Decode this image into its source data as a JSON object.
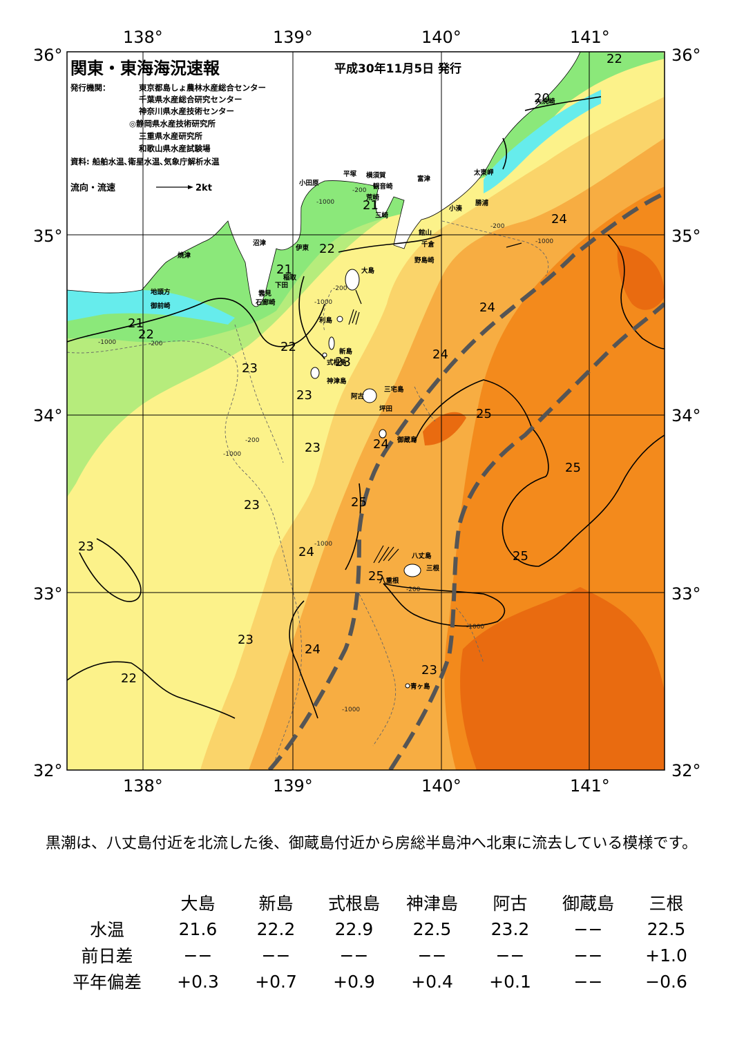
{
  "header": {
    "title": "関東・東海海況速報",
    "issue_date": "平成30年11月5日 発行",
    "issuer_label": "発行機関：",
    "issuers": [
      "東京都島しょ農林水産総合センター",
      "千葉県水産総合研究センター",
      "神奈川県水産技術センター",
      "◎静岡県水産技術研究所",
      "三重県水産研究所",
      "和歌山県水産試験場"
    ],
    "source": "資料: 船舶水温､衛星水温､気象庁解析水温",
    "legend_label": "流向・流速",
    "legend_scale": "2kt"
  },
  "axes": {
    "lon_top": [
      "138°",
      "139°",
      "140°",
      "141°"
    ],
    "lon_bottom": [
      "138°",
      "139°",
      "140°",
      "141°"
    ],
    "lat_left": [
      "36°",
      "35°",
      "34°",
      "33°",
      "32°"
    ],
    "lat_right": [
      "36°",
      "35°",
      "34°",
      "33°",
      "32°"
    ]
  },
  "palette": {
    "cyan": "#66ecec",
    "green": "#8be87a",
    "light_green": "#b6ec7c",
    "yellow": "#fcf28a",
    "light_orange": "#fad46a",
    "orange": "#f7ad42",
    "dark_orange": "#f38a1c",
    "deep_orange": "#e96b10",
    "land": "#ffffff",
    "kuroshio_axis": "#555555"
  },
  "place_labels": [
    "小田原",
    "平塚",
    "横須賀",
    "観音崎",
    "富津",
    "荒崎",
    "三崎",
    "館山",
    "千倉",
    "野島崎",
    "沼津",
    "伊東",
    "焼津",
    "稲取",
    "下田",
    "雲見",
    "石廊崎",
    "地頭方",
    "御前崎",
    "大島",
    "利島",
    "新島",
    "式根島",
    "神津島",
    "三宅島",
    "阿古",
    "坪田",
    "御蔵島",
    "八丈島",
    "三根",
    "八重根",
    "青ヶ島",
    "太東岬",
    "勝浦",
    "小湊",
    "大洗崎"
  ],
  "temperature_labels": [
    "22",
    "20",
    "21",
    "24",
    "22",
    "21",
    "24",
    "21",
    "22",
    "24",
    "22",
    "23",
    "23",
    "23",
    "23",
    "23",
    "24",
    "25",
    "25",
    "23",
    "24",
    "25",
    "25",
    "23",
    "24",
    "25",
    "22",
    "23",
    "23"
  ],
  "depth_labels": [
    "-200",
    "-1000",
    "-200",
    "-1000",
    "-200",
    "-1000",
    "-200",
    "-1000",
    "-200",
    "-1000",
    "-1000",
    "-1000",
    "-200",
    "-1000"
  ],
  "summary": "黒潮は、八丈島付近を北流した後、御蔵島付近から房総半島沖へ北東に流去している模様です。",
  "table": {
    "columns": [
      "大島",
      "新島",
      "式根島",
      "神津島",
      "阿古",
      "御蔵島",
      "三根"
    ],
    "rows": [
      {
        "label": "水温",
        "values": [
          "21.6",
          "22.2",
          "22.9",
          "22.5",
          "23.2",
          "−−",
          "22.5"
        ]
      },
      {
        "label": "前日差",
        "values": [
          "−−",
          "−−",
          "−−",
          "−−",
          "−−",
          "−−",
          "+1.0"
        ]
      },
      {
        "label": "平年偏差",
        "values": [
          "+0.3",
          "+0.7",
          "+0.9",
          "+0.4",
          "+0.1",
          "−−",
          "−0.6"
        ]
      }
    ]
  }
}
